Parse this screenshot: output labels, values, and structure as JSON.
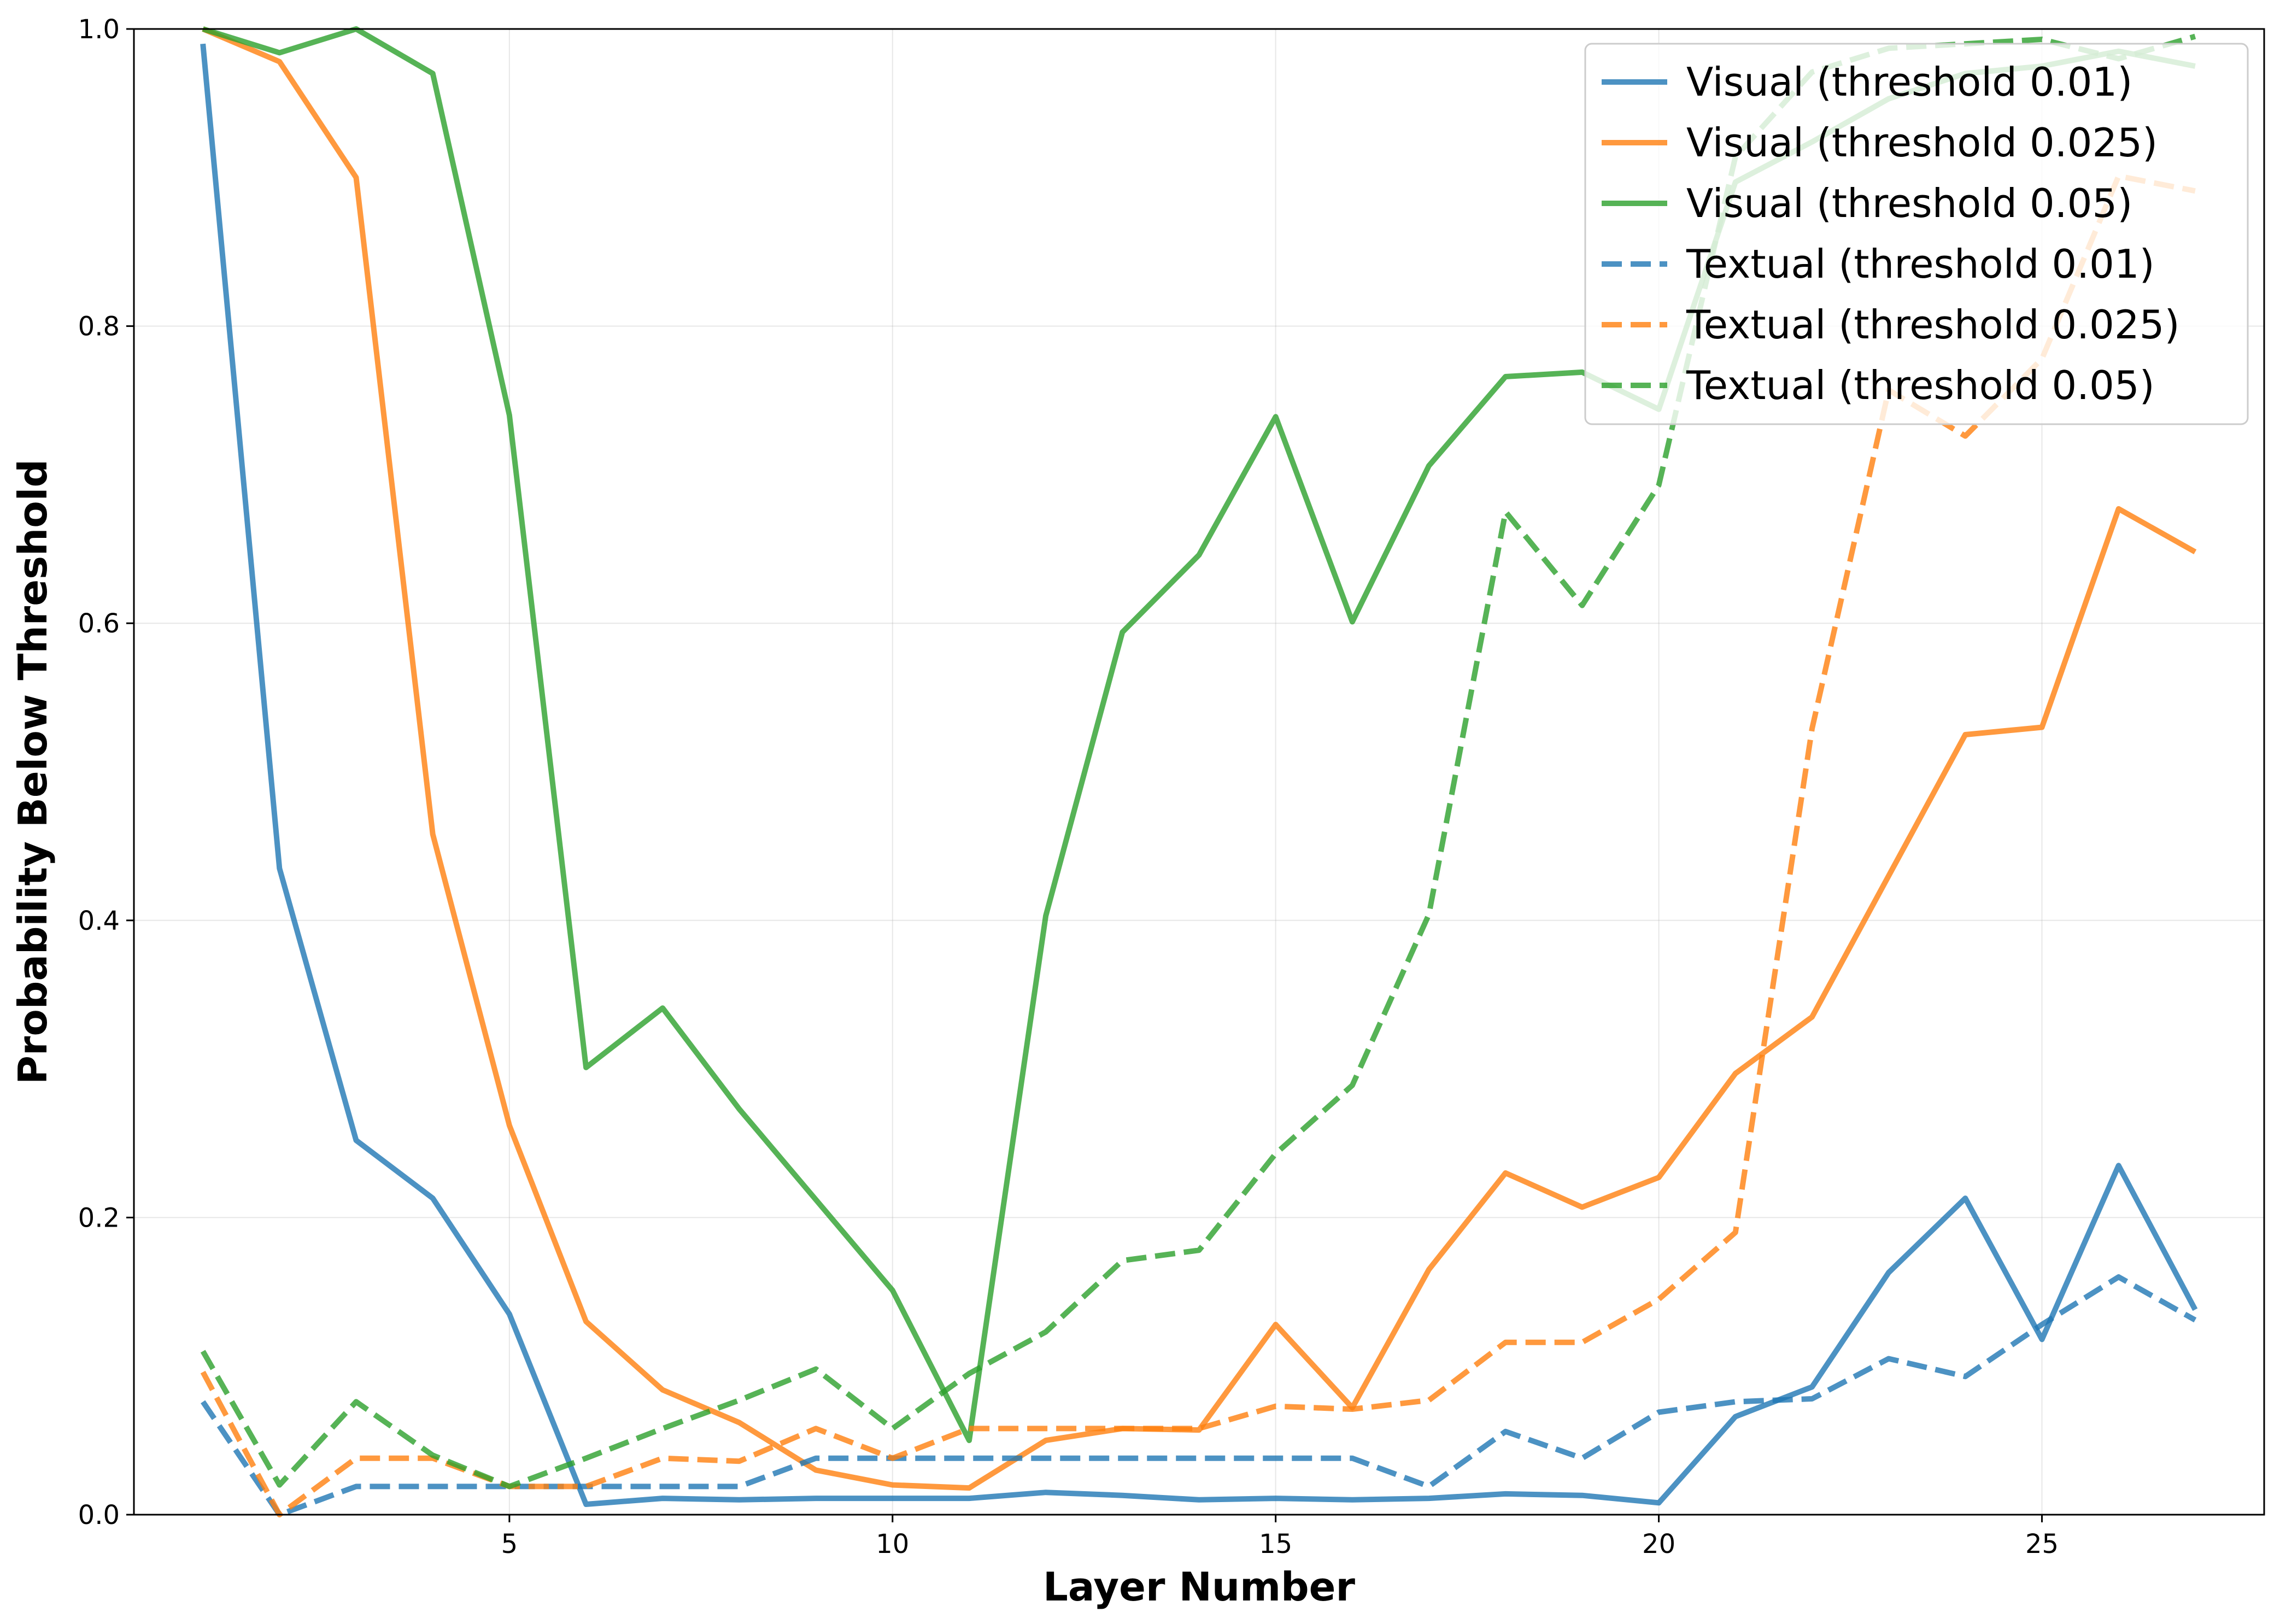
{
  "chart_data": {
    "type": "line",
    "xlabel": "Layer Number",
    "ylabel": "Probability Below Threshold",
    "xlim": [
      0.1,
      27.9
    ],
    "ylim": [
      0,
      1
    ],
    "xticks": [
      5,
      10,
      15,
      20,
      25
    ],
    "xtick_labels": [
      "5",
      "10",
      "15",
      "20",
      "25"
    ],
    "yticks": [
      0,
      0.2,
      0.4,
      0.6,
      0.8,
      1.0
    ],
    "ytick_labels": [
      "0.0",
      "0.2",
      "0.4",
      "0.6",
      "0.8",
      "1.0"
    ],
    "grid": true,
    "legend_position": "top-right",
    "x": [
      1,
      2,
      3,
      4,
      5,
      6,
      7,
      8,
      9,
      10,
      11,
      12,
      13,
      14,
      15,
      16,
      17,
      18,
      19,
      20,
      21,
      22,
      23,
      24,
      25,
      26,
      27
    ],
    "series": [
      {
        "name": "Visual (threshold 0.01)",
        "color": "#1f77b4",
        "style": "solid",
        "values": [
          0.99,
          0.435,
          0.252,
          0.213,
          0.135,
          0.007,
          0.011,
          0.01,
          0.011,
          0.011,
          0.011,
          0.015,
          0.013,
          0.01,
          0.011,
          0.01,
          0.011,
          0.014,
          0.013,
          0.008,
          0.066,
          0.086,
          0.163,
          0.213,
          0.118,
          0.235,
          0.138
        ]
      },
      {
        "name": "Visual (threshold 0.025)",
        "color": "#ff7f0e",
        "style": "solid",
        "values": [
          1.0,
          0.978,
          0.9,
          0.458,
          0.262,
          0.13,
          0.084,
          0.062,
          0.03,
          0.02,
          0.018,
          0.05,
          0.058,
          0.057,
          0.128,
          0.072,
          0.165,
          0.23,
          0.207,
          0.227,
          0.297,
          0.335,
          0.43,
          0.525,
          0.53,
          0.677,
          0.648
        ]
      },
      {
        "name": "Visual (threshold 0.05)",
        "color": "#2ca02c",
        "style": "solid",
        "values": [
          1.0,
          0.984,
          1.0,
          0.97,
          0.74,
          0.301,
          0.341,
          0.273,
          0.212,
          0.151,
          0.05,
          0.403,
          0.594,
          0.646,
          0.739,
          0.601,
          0.706,
          0.766,
          0.769,
          0.744,
          0.897,
          0.924,
          0.953,
          0.97,
          0.975,
          0.985,
          0.975
        ]
      },
      {
        "name": "Textual (threshold 0.01)",
        "color": "#1f77b4",
        "style": "dashed",
        "values": [
          0.076,
          0.0,
          0.019,
          0.019,
          0.019,
          0.019,
          0.019,
          0.019,
          0.038,
          0.038,
          0.038,
          0.038,
          0.038,
          0.038,
          0.038,
          0.038,
          0.019,
          0.056,
          0.038,
          0.069,
          0.076,
          0.078,
          0.105,
          0.093,
          0.128,
          0.16,
          0.131
        ]
      },
      {
        "name": "Textual (threshold 0.025)",
        "color": "#ff7f0e",
        "style": "dashed",
        "values": [
          0.096,
          0.0,
          0.038,
          0.038,
          0.019,
          0.019,
          0.038,
          0.036,
          0.058,
          0.038,
          0.058,
          0.058,
          0.058,
          0.058,
          0.073,
          0.071,
          0.077,
          0.116,
          0.116,
          0.145,
          0.19,
          0.529,
          0.757,
          0.726,
          0.778,
          0.901,
          0.891
        ]
      },
      {
        "name": "Textual (threshold 0.05)",
        "color": "#2ca02c",
        "style": "dashed",
        "values": [
          0.11,
          0.02,
          0.076,
          0.04,
          0.019,
          0.038,
          0.058,
          0.077,
          0.098,
          0.058,
          0.095,
          0.123,
          0.171,
          0.178,
          0.243,
          0.289,
          0.404,
          0.675,
          0.612,
          0.693,
          0.914,
          0.971,
          0.987,
          0.99,
          0.993,
          0.98,
          0.995
        ]
      }
    ]
  }
}
